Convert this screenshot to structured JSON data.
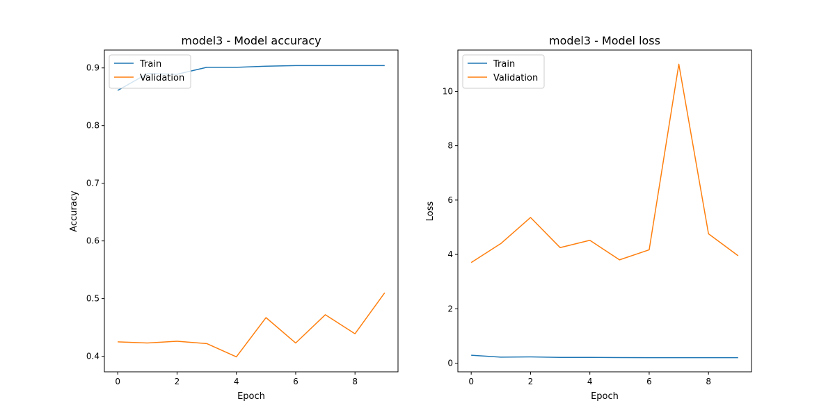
{
  "chart_data": [
    {
      "type": "line",
      "title": "model3 - Model accuracy",
      "xlabel": "Epoch",
      "ylabel": "Accuracy",
      "x": [
        0,
        1,
        2,
        3,
        4,
        5,
        6,
        7,
        8,
        9
      ],
      "xlim": [
        -0.45,
        9.45
      ],
      "ylim": [
        0.373,
        0.931
      ],
      "xticks": [
        0,
        2,
        4,
        6,
        8
      ],
      "yticks": [
        0.4,
        0.5,
        0.6,
        0.7,
        0.8,
        0.9
      ],
      "xtick_labels": [
        "0",
        "2",
        "4",
        "6",
        "8"
      ],
      "ytick_labels": [
        "0.4",
        "0.5",
        "0.6",
        "0.7",
        "0.8",
        "0.9"
      ],
      "grid": false,
      "legend": "upper left",
      "series": [
        {
          "name": "Train",
          "color": "#1f77b4",
          "values": [
            0.861,
            0.89,
            0.889,
            0.901,
            0.901,
            0.903,
            0.904,
            0.904,
            0.904,
            0.904
          ]
        },
        {
          "name": "Validation",
          "color": "#ff7f0e",
          "values": [
            0.425,
            0.423,
            0.426,
            0.422,
            0.399,
            0.467,
            0.423,
            0.472,
            0.439,
            0.51
          ]
        }
      ]
    },
    {
      "type": "line",
      "title": "model3 - Model loss",
      "xlabel": "Epoch",
      "ylabel": "Loss",
      "x": [
        0,
        1,
        2,
        3,
        4,
        5,
        6,
        7,
        8,
        9
      ],
      "xlim": [
        -0.45,
        9.45
      ],
      "ylim": [
        -0.32,
        11.52
      ],
      "xticks": [
        0,
        2,
        4,
        6,
        8
      ],
      "yticks": [
        0,
        2,
        4,
        6,
        8,
        10
      ],
      "xtick_labels": [
        "0",
        "2",
        "4",
        "6",
        "8"
      ],
      "ytick_labels": [
        "0",
        "2",
        "4",
        "6",
        "8",
        "10"
      ],
      "grid": false,
      "legend": "upper left",
      "series": [
        {
          "name": "Train",
          "color": "#1f77b4",
          "values": [
            0.29,
            0.22,
            0.23,
            0.21,
            0.21,
            0.205,
            0.2,
            0.2,
            0.2,
            0.2
          ]
        },
        {
          "name": "Validation",
          "color": "#ff7f0e",
          "values": [
            3.7,
            4.4,
            5.36,
            4.25,
            4.52,
            3.8,
            4.17,
            11.0,
            4.76,
            3.95
          ]
        }
      ]
    }
  ]
}
